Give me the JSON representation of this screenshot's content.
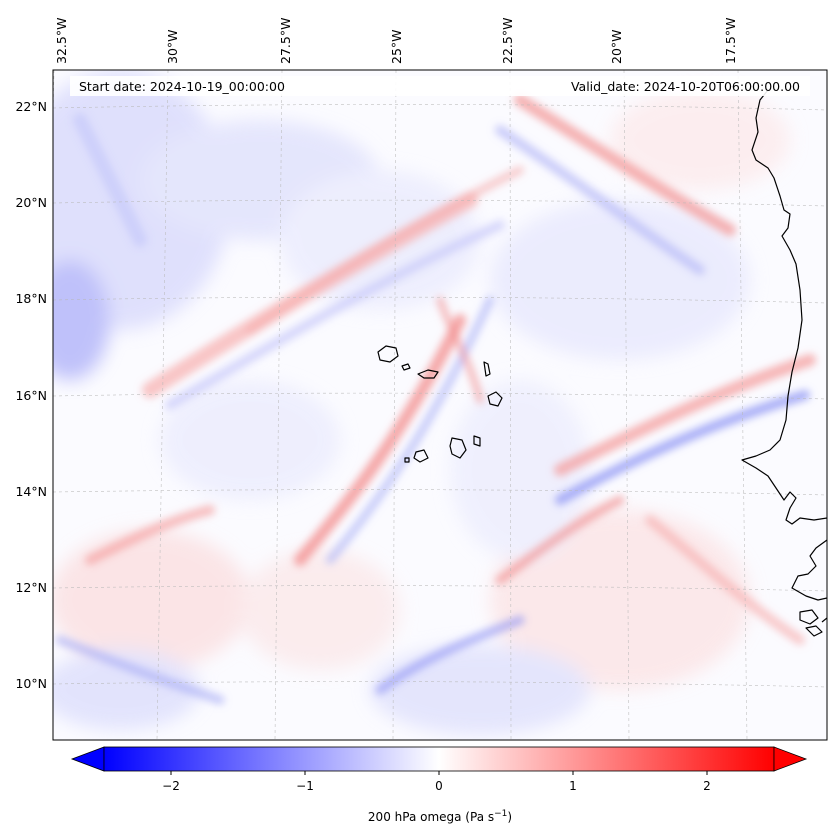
{
  "map": {
    "start_label": "Start date: 2024-10-19_00:00:00",
    "valid_label": "Valid_date: 2024-10-20T06:00:00.00",
    "lon_labels": [
      "32.5°W",
      "30°W",
      "27.5°W",
      "25°W",
      "22.5°W",
      "20°W",
      "17.5°W"
    ],
    "lat_labels": [
      "22°N",
      "20°N",
      "18°N",
      "16°N",
      "14°N",
      "12°N",
      "10°N"
    ],
    "field": "200 hPa omega",
    "colors": {
      "negative": "#0000ff",
      "zero": "#ffffff",
      "positive": "#ff0000",
      "coast": "#000000"
    }
  },
  "colorbar": {
    "ticks": [
      "−2",
      "−1",
      "0",
      "1",
      "2"
    ],
    "label_main": "200 hPa omega (Pa s",
    "label_sup": "−1",
    "label_end": ")",
    "range": [
      -2.6,
      2.6
    ]
  }
}
